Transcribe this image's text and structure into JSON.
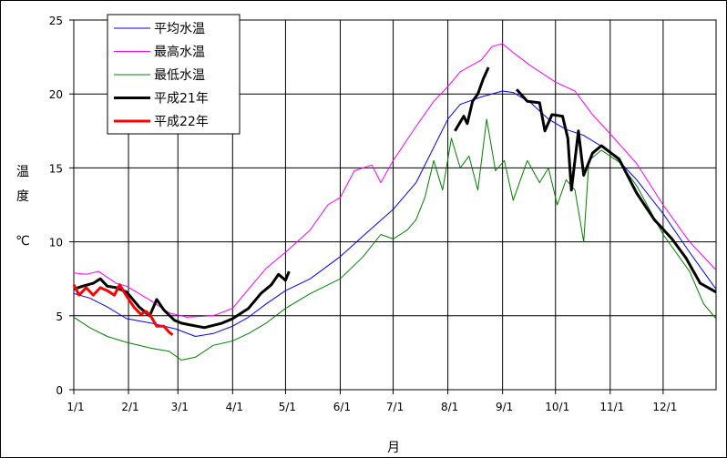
{
  "chart_data": {
    "type": "line",
    "xlabel": "月",
    "ylabel": [
      "温",
      "度",
      "℃"
    ],
    "ylim": [
      0,
      25
    ],
    "yticks": [
      "0",
      "5",
      "10",
      "15",
      "20",
      "25"
    ],
    "x_tick_labels": [
      "1/1",
      "2/1",
      "3/1",
      "4/1",
      "5/1",
      "6/1",
      "7/1",
      "8/1",
      "9/1",
      "10/1",
      "11/1",
      "12/1"
    ],
    "grid": true,
    "legend_position": "top-left",
    "series": [
      {
        "name": "平均水温",
        "color": "#0000ff",
        "width": 1,
        "points": [
          [
            1,
            6.5
          ],
          [
            10,
            6.2
          ],
          [
            20,
            5.6
          ],
          [
            31,
            4.8
          ],
          [
            45,
            4.5
          ],
          [
            59,
            4.1
          ],
          [
            70,
            3.6
          ],
          [
            80,
            3.8
          ],
          [
            91,
            4.3
          ],
          [
            100,
            4.9
          ],
          [
            110,
            5.8
          ],
          [
            121,
            6.7
          ],
          [
            135,
            7.5
          ],
          [
            152,
            9.0
          ],
          [
            165,
            10.4
          ],
          [
            182,
            12.2
          ],
          [
            195,
            14.0
          ],
          [
            213,
            18.3
          ],
          [
            220,
            19.3
          ],
          [
            232,
            19.8
          ],
          [
            244,
            20.2
          ],
          [
            250,
            20.1
          ],
          [
            260,
            19.4
          ],
          [
            270,
            18.3
          ],
          [
            280,
            17.6
          ],
          [
            290,
            17.2
          ],
          [
            305,
            16.1
          ],
          [
            320,
            14.2
          ],
          [
            335,
            11.9
          ],
          [
            350,
            9.3
          ],
          [
            365,
            6.8
          ]
        ]
      },
      {
        "name": "最高水温",
        "color": "#ff00ff",
        "width": 1,
        "points": [
          [
            1,
            7.9
          ],
          [
            8,
            7.8
          ],
          [
            15,
            8.0
          ],
          [
            25,
            7.2
          ],
          [
            31,
            7.0
          ],
          [
            45,
            6.0
          ],
          [
            55,
            5.2
          ],
          [
            65,
            4.9
          ],
          [
            80,
            5.0
          ],
          [
            91,
            5.5
          ],
          [
            100,
            6.8
          ],
          [
            110,
            8.2
          ],
          [
            121,
            9.3
          ],
          [
            135,
            10.8
          ],
          [
            145,
            12.5
          ],
          [
            152,
            13.0
          ],
          [
            160,
            14.8
          ],
          [
            170,
            15.2
          ],
          [
            175,
            14.0
          ],
          [
            182,
            15.5
          ],
          [
            195,
            17.8
          ],
          [
            205,
            19.5
          ],
          [
            213,
            20.5
          ],
          [
            220,
            21.5
          ],
          [
            232,
            22.3
          ],
          [
            238,
            23.2
          ],
          [
            244,
            23.4
          ],
          [
            250,
            22.8
          ],
          [
            260,
            21.9
          ],
          [
            274,
            20.8
          ],
          [
            285,
            20.2
          ],
          [
            295,
            18.6
          ],
          [
            305,
            17.3
          ],
          [
            320,
            15.3
          ],
          [
            335,
            12.5
          ],
          [
            350,
            10.0
          ],
          [
            365,
            8.1
          ]
        ]
      },
      {
        "name": "最低水温",
        "color": "#008000",
        "width": 1,
        "points": [
          [
            1,
            4.9
          ],
          [
            10,
            4.2
          ],
          [
            20,
            3.6
          ],
          [
            31,
            3.2
          ],
          [
            45,
            2.8
          ],
          [
            55,
            2.6
          ],
          [
            62,
            2.0
          ],
          [
            70,
            2.2
          ],
          [
            80,
            3.0
          ],
          [
            91,
            3.3
          ],
          [
            100,
            3.8
          ],
          [
            110,
            4.5
          ],
          [
            121,
            5.5
          ],
          [
            135,
            6.5
          ],
          [
            152,
            7.5
          ],
          [
            165,
            9.0
          ],
          [
            175,
            10.5
          ],
          [
            182,
            10.2
          ],
          [
            190,
            10.8
          ],
          [
            195,
            11.5
          ],
          [
            200,
            13.0
          ],
          [
            205,
            15.5
          ],
          [
            210,
            13.5
          ],
          [
            215,
            17.0
          ],
          [
            220,
            15.0
          ],
          [
            225,
            15.8
          ],
          [
            230,
            13.5
          ],
          [
            235,
            18.3
          ],
          [
            240,
            14.8
          ],
          [
            245,
            15.5
          ],
          [
            250,
            12.8
          ],
          [
            258,
            15.5
          ],
          [
            265,
            14.0
          ],
          [
            270,
            15.0
          ],
          [
            275,
            12.5
          ],
          [
            280,
            14.2
          ],
          [
            285,
            13.5
          ],
          [
            290,
            10.0
          ],
          [
            293,
            15.5
          ],
          [
            300,
            16.2
          ],
          [
            310,
            15.4
          ],
          [
            320,
            13.8
          ],
          [
            335,
            10.5
          ],
          [
            350,
            8.0
          ],
          [
            358,
            5.8
          ],
          [
            365,
            4.8
          ]
        ]
      },
      {
        "name": "平成21年",
        "color": "#000000",
        "width": 3,
        "points": [
          [
            1,
            6.8
          ],
          [
            6,
            7.0
          ],
          [
            12,
            7.2
          ],
          [
            16,
            7.5
          ],
          [
            20,
            7.0
          ],
          [
            25,
            6.9
          ],
          [
            31,
            6.6
          ],
          [
            38,
            5.6
          ],
          [
            44,
            5.0
          ],
          [
            48,
            6.1
          ],
          [
            52,
            5.4
          ],
          [
            58,
            4.7
          ],
          [
            62,
            4.5
          ],
          [
            66,
            4.4
          ],
          [
            75,
            4.2
          ],
          [
            85,
            4.5
          ],
          [
            91,
            4.8
          ],
          [
            100,
            5.5
          ],
          [
            107,
            6.5
          ],
          [
            113,
            7.1
          ],
          [
            117,
            7.8
          ],
          [
            121,
            7.4
          ],
          [
            123,
            8.0
          ]
        ]
      },
      {
        "name": "平成21年",
        "color": "#000000",
        "width": 3,
        "points": [
          [
            217,
            17.5
          ],
          [
            222,
            18.5
          ],
          [
            224,
            18.0
          ],
          [
            227,
            19.5
          ],
          [
            230,
            20.0
          ],
          [
            233,
            21.0
          ],
          [
            236,
            21.8
          ]
        ]
      },
      {
        "name": "平成21年",
        "color": "#000000",
        "width": 3,
        "points": [
          [
            252,
            20.3
          ],
          [
            258,
            19.5
          ],
          [
            265,
            19.4
          ],
          [
            268,
            17.5
          ],
          [
            272,
            18.6
          ],
          [
            278,
            18.5
          ],
          [
            281,
            17.0
          ],
          [
            283,
            13.5
          ],
          [
            287,
            17.5
          ],
          [
            290,
            14.5
          ],
          [
            295,
            16.0
          ],
          [
            300,
            16.5
          ],
          [
            310,
            15.6
          ],
          [
            320,
            13.3
          ],
          [
            330,
            11.5
          ],
          [
            340,
            10.2
          ],
          [
            348,
            8.9
          ],
          [
            356,
            7.2
          ],
          [
            365,
            6.6
          ]
        ]
      },
      {
        "name": "平成22年",
        "color": "#ff0000",
        "width": 3,
        "points": [
          [
            1,
            7.1
          ],
          [
            4,
            6.4
          ],
          [
            8,
            6.9
          ],
          [
            12,
            6.4
          ],
          [
            16,
            6.9
          ],
          [
            20,
            6.7
          ],
          [
            24,
            6.4
          ],
          [
            27,
            7.1
          ],
          [
            30,
            6.5
          ],
          [
            35,
            5.6
          ],
          [
            39,
            5.1
          ],
          [
            42,
            5.3
          ],
          [
            45,
            4.9
          ],
          [
            48,
            4.3
          ],
          [
            52,
            4.3
          ],
          [
            55,
            3.9
          ],
          [
            57,
            3.7
          ]
        ]
      }
    ],
    "legend": [
      {
        "label": "平均水温",
        "color": "#0000ff",
        "width": 1
      },
      {
        "label": "最高水温",
        "color": "#ff00ff",
        "width": 1
      },
      {
        "label": "最低水温",
        "color": "#008000",
        "width": 1
      },
      {
        "label": "平成21年",
        "color": "#000000",
        "width": 3
      },
      {
        "label": "平成22年",
        "color": "#ff0000",
        "width": 3
      }
    ]
  }
}
